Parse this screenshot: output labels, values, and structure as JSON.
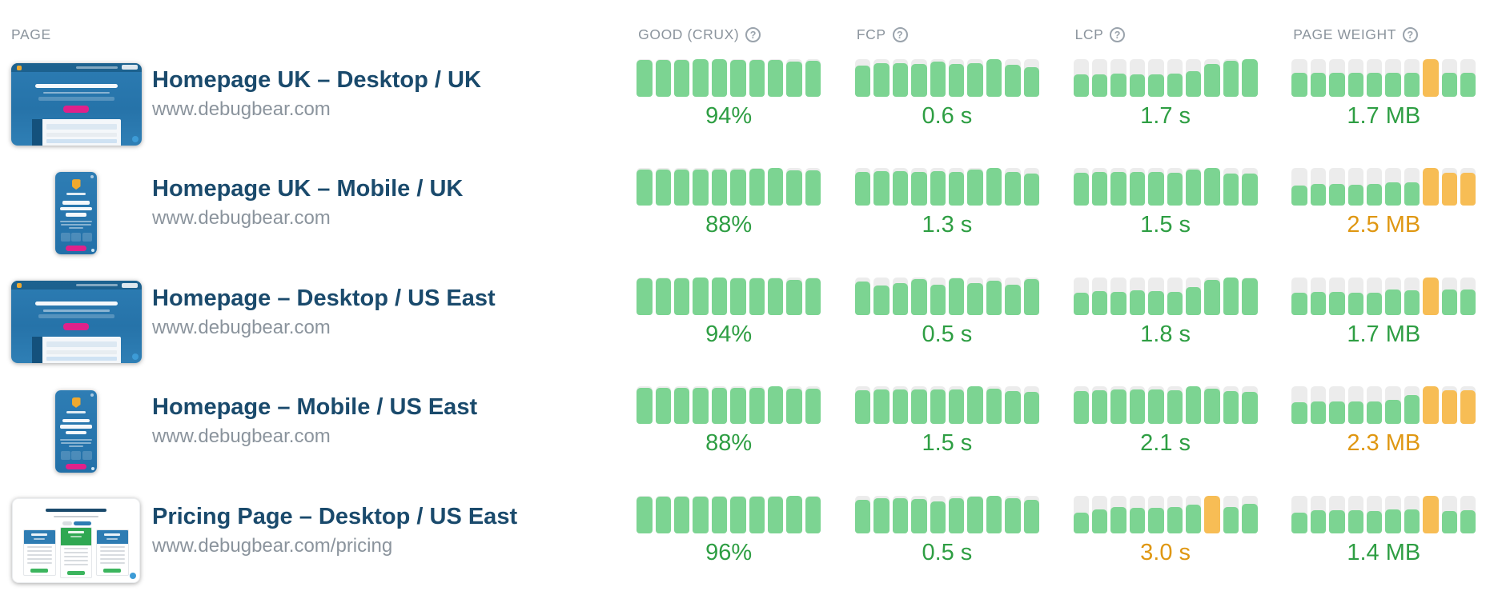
{
  "colors": {
    "green_bar": "#7CD492",
    "orange_bar": "#F7BD55",
    "track": "#ECECEC",
    "green_text": "#2E9E43",
    "orange_text": "#DF9712",
    "title": "#1A4A6C",
    "muted": "#8B949D"
  },
  "header": {
    "page_label": "PAGE",
    "help_glyph": "?",
    "columns": [
      {
        "label": "GOOD (CRUX)"
      },
      {
        "label": "FCP"
      },
      {
        "label": "LCP"
      },
      {
        "label": "PAGE WEIGHT"
      }
    ]
  },
  "rows": [
    {
      "title": "Homepage UK – Desktop / UK",
      "url": "www.debugbear.com",
      "thumbnail": "desktop-homepage-screenshot",
      "metrics": {
        "good": {
          "value": "94%",
          "color": "green",
          "bars": [
            [
              97,
              "g"
            ],
            [
              97,
              "g"
            ],
            [
              97,
              "g"
            ],
            [
              99,
              "g"
            ],
            [
              99,
              "g"
            ],
            [
              97,
              "g"
            ],
            [
              97,
              "g"
            ],
            [
              97,
              "g"
            ],
            [
              94,
              "g"
            ],
            [
              95,
              "g"
            ]
          ]
        },
        "fcp": {
          "value": "0.6 s",
          "color": "green",
          "bars": [
            [
              84,
              "g"
            ],
            [
              90,
              "g"
            ],
            [
              90,
              "g"
            ],
            [
              88,
              "g"
            ],
            [
              94,
              "g"
            ],
            [
              87,
              "g"
            ],
            [
              90,
              "g"
            ],
            [
              100,
              "g"
            ],
            [
              86,
              "g"
            ],
            [
              78,
              "g"
            ]
          ]
        },
        "lcp": {
          "value": "1.7 s",
          "color": "green",
          "bars": [
            [
              60,
              "g"
            ],
            [
              60,
              "g"
            ],
            [
              61,
              "g"
            ],
            [
              60,
              "g"
            ],
            [
              60,
              "g"
            ],
            [
              61,
              "g"
            ],
            [
              68,
              "g"
            ],
            [
              88,
              "g"
            ],
            [
              96,
              "g"
            ],
            [
              100,
              "g"
            ]
          ]
        },
        "weight": {
          "value": "1.7 MB",
          "color": "green",
          "bars": [
            [
              63,
              "g"
            ],
            [
              64,
              "g"
            ],
            [
              63,
              "g"
            ],
            [
              64,
              "g"
            ],
            [
              63,
              "g"
            ],
            [
              64,
              "g"
            ],
            [
              63,
              "g"
            ],
            [
              100,
              "o"
            ],
            [
              64,
              "g"
            ],
            [
              64,
              "g"
            ]
          ]
        }
      }
    },
    {
      "title": "Homepage UK – Mobile / UK",
      "url": "www.debugbear.com",
      "thumbnail": "mobile-homepage-screenshot",
      "metrics": {
        "good": {
          "value": "88%",
          "color": "green",
          "bars": [
            [
              97,
              "g"
            ],
            [
              97,
              "g"
            ],
            [
              97,
              "g"
            ],
            [
              97,
              "g"
            ],
            [
              97,
              "g"
            ],
            [
              97,
              "g"
            ],
            [
              98,
              "g"
            ],
            [
              100,
              "g"
            ],
            [
              94,
              "g"
            ],
            [
              95,
              "g"
            ]
          ]
        },
        "fcp": {
          "value": "1.3 s",
          "color": "green",
          "bars": [
            [
              90,
              "g"
            ],
            [
              92,
              "g"
            ],
            [
              92,
              "g"
            ],
            [
              91,
              "g"
            ],
            [
              92,
              "g"
            ],
            [
              90,
              "g"
            ],
            [
              97,
              "g"
            ],
            [
              100,
              "g"
            ],
            [
              91,
              "g"
            ],
            [
              86,
              "g"
            ]
          ]
        },
        "lcp": {
          "value": "1.5 s",
          "color": "green",
          "bars": [
            [
              88,
              "g"
            ],
            [
              90,
              "g"
            ],
            [
              91,
              "g"
            ],
            [
              90,
              "g"
            ],
            [
              90,
              "g"
            ],
            [
              88,
              "g"
            ],
            [
              96,
              "g"
            ],
            [
              100,
              "g"
            ],
            [
              85,
              "g"
            ],
            [
              86,
              "g"
            ]
          ]
        },
        "weight": {
          "value": "2.5 MB",
          "color": "orange",
          "bars": [
            [
              55,
              "g"
            ],
            [
              58,
              "g"
            ],
            [
              58,
              "g"
            ],
            [
              57,
              "g"
            ],
            [
              58,
              "g"
            ],
            [
              62,
              "g"
            ],
            [
              63,
              "g"
            ],
            [
              100,
              "o"
            ],
            [
              88,
              "o"
            ],
            [
              88,
              "o"
            ]
          ]
        }
      }
    },
    {
      "title": "Homepage – Desktop / US East",
      "url": "www.debugbear.com",
      "thumbnail": "desktop-homepage-screenshot",
      "metrics": {
        "good": {
          "value": "94%",
          "color": "green",
          "bars": [
            [
              97,
              "g"
            ],
            [
              97,
              "g"
            ],
            [
              97,
              "g"
            ],
            [
              99,
              "g"
            ],
            [
              99,
              "g"
            ],
            [
              97,
              "g"
            ],
            [
              97,
              "g"
            ],
            [
              97,
              "g"
            ],
            [
              93,
              "g"
            ],
            [
              97,
              "g"
            ]
          ]
        },
        "fcp": {
          "value": "0.5 s",
          "color": "green",
          "bars": [
            [
              88,
              "g"
            ],
            [
              78,
              "g"
            ],
            [
              85,
              "g"
            ],
            [
              95,
              "g"
            ],
            [
              80,
              "g"
            ],
            [
              97,
              "g"
            ],
            [
              85,
              "g"
            ],
            [
              92,
              "g"
            ],
            [
              80,
              "g"
            ],
            [
              95,
              "g"
            ]
          ]
        },
        "lcp": {
          "value": "1.8 s",
          "color": "green",
          "bars": [
            [
              60,
              "g"
            ],
            [
              63,
              "g"
            ],
            [
              61,
              "g"
            ],
            [
              66,
              "g"
            ],
            [
              64,
              "g"
            ],
            [
              61,
              "g"
            ],
            [
              74,
              "g"
            ],
            [
              93,
              "g"
            ],
            [
              100,
              "g"
            ],
            [
              98,
              "g"
            ]
          ]
        },
        "weight": {
          "value": "1.7 MB",
          "color": "green",
          "bars": [
            [
              60,
              "g"
            ],
            [
              62,
              "g"
            ],
            [
              62,
              "g"
            ],
            [
              60,
              "g"
            ],
            [
              60,
              "g"
            ],
            [
              68,
              "g"
            ],
            [
              66,
              "g"
            ],
            [
              100,
              "o"
            ],
            [
              68,
              "g"
            ],
            [
              68,
              "g"
            ]
          ]
        }
      }
    },
    {
      "title": "Homepage – Mobile / US East",
      "url": "www.debugbear.com",
      "thumbnail": "mobile-homepage-screenshot",
      "metrics": {
        "good": {
          "value": "88%",
          "color": "green",
          "bars": [
            [
              97,
              "g"
            ],
            [
              97,
              "g"
            ],
            [
              97,
              "g"
            ],
            [
              97,
              "g"
            ],
            [
              97,
              "g"
            ],
            [
              97,
              "g"
            ],
            [
              97,
              "g"
            ],
            [
              100,
              "g"
            ],
            [
              94,
              "g"
            ],
            [
              95,
              "g"
            ]
          ]
        },
        "fcp": {
          "value": "1.5 s",
          "color": "green",
          "bars": [
            [
              90,
              "g"
            ],
            [
              92,
              "g"
            ],
            [
              92,
              "g"
            ],
            [
              91,
              "g"
            ],
            [
              92,
              "g"
            ],
            [
              91,
              "g"
            ],
            [
              100,
              "g"
            ],
            [
              95,
              "g"
            ],
            [
              87,
              "g"
            ],
            [
              85,
              "g"
            ]
          ]
        },
        "lcp": {
          "value": "2.1 s",
          "color": "green",
          "bars": [
            [
              88,
              "g"
            ],
            [
              90,
              "g"
            ],
            [
              92,
              "g"
            ],
            [
              91,
              "g"
            ],
            [
              91,
              "g"
            ],
            [
              90,
              "g"
            ],
            [
              100,
              "g"
            ],
            [
              95,
              "g"
            ],
            [
              88,
              "g"
            ],
            [
              86,
              "g"
            ]
          ]
        },
        "weight": {
          "value": "2.3 MB",
          "color": "orange",
          "bars": [
            [
              58,
              "g"
            ],
            [
              60,
              "g"
            ],
            [
              60,
              "g"
            ],
            [
              59,
              "g"
            ],
            [
              60,
              "g"
            ],
            [
              65,
              "g"
            ],
            [
              78,
              "g"
            ],
            [
              100,
              "o"
            ],
            [
              90,
              "o"
            ],
            [
              90,
              "o"
            ]
          ]
        }
      }
    },
    {
      "title": "Pricing Page – Desktop / US East",
      "url": "www.debugbear.com/pricing",
      "thumbnail": "desktop-pricing-screenshot",
      "metrics": {
        "good": {
          "value": "96%",
          "color": "green",
          "bars": [
            [
              97,
              "g"
            ],
            [
              97,
              "g"
            ],
            [
              97,
              "g"
            ],
            [
              97,
              "g"
            ],
            [
              98,
              "g"
            ],
            [
              98,
              "g"
            ],
            [
              97,
              "g"
            ],
            [
              97,
              "g"
            ],
            [
              99,
              "g"
            ],
            [
              97,
              "g"
            ]
          ]
        },
        "fcp": {
          "value": "0.5 s",
          "color": "green",
          "bars": [
            [
              88,
              "g"
            ],
            [
              92,
              "g"
            ],
            [
              92,
              "g"
            ],
            [
              90,
              "g"
            ],
            [
              85,
              "g"
            ],
            [
              92,
              "g"
            ],
            [
              97,
              "g"
            ],
            [
              100,
              "g"
            ],
            [
              92,
              "g"
            ],
            [
              88,
              "g"
            ]
          ]
        },
        "lcp": {
          "value": "3.0 s",
          "color": "orange",
          "bars": [
            [
              55,
              "g"
            ],
            [
              63,
              "g"
            ],
            [
              70,
              "g"
            ],
            [
              68,
              "g"
            ],
            [
              68,
              "g"
            ],
            [
              70,
              "g"
            ],
            [
              75,
              "g"
            ],
            [
              100,
              "o"
            ],
            [
              70,
              "g"
            ],
            [
              78,
              "g"
            ]
          ]
        },
        "weight": {
          "value": "1.4 MB",
          "color": "green",
          "bars": [
            [
              55,
              "g"
            ],
            [
              60,
              "g"
            ],
            [
              60,
              "g"
            ],
            [
              60,
              "g"
            ],
            [
              58,
              "g"
            ],
            [
              62,
              "g"
            ],
            [
              62,
              "g"
            ],
            [
              100,
              "o"
            ],
            [
              58,
              "g"
            ],
            [
              60,
              "g"
            ]
          ]
        }
      }
    }
  ]
}
